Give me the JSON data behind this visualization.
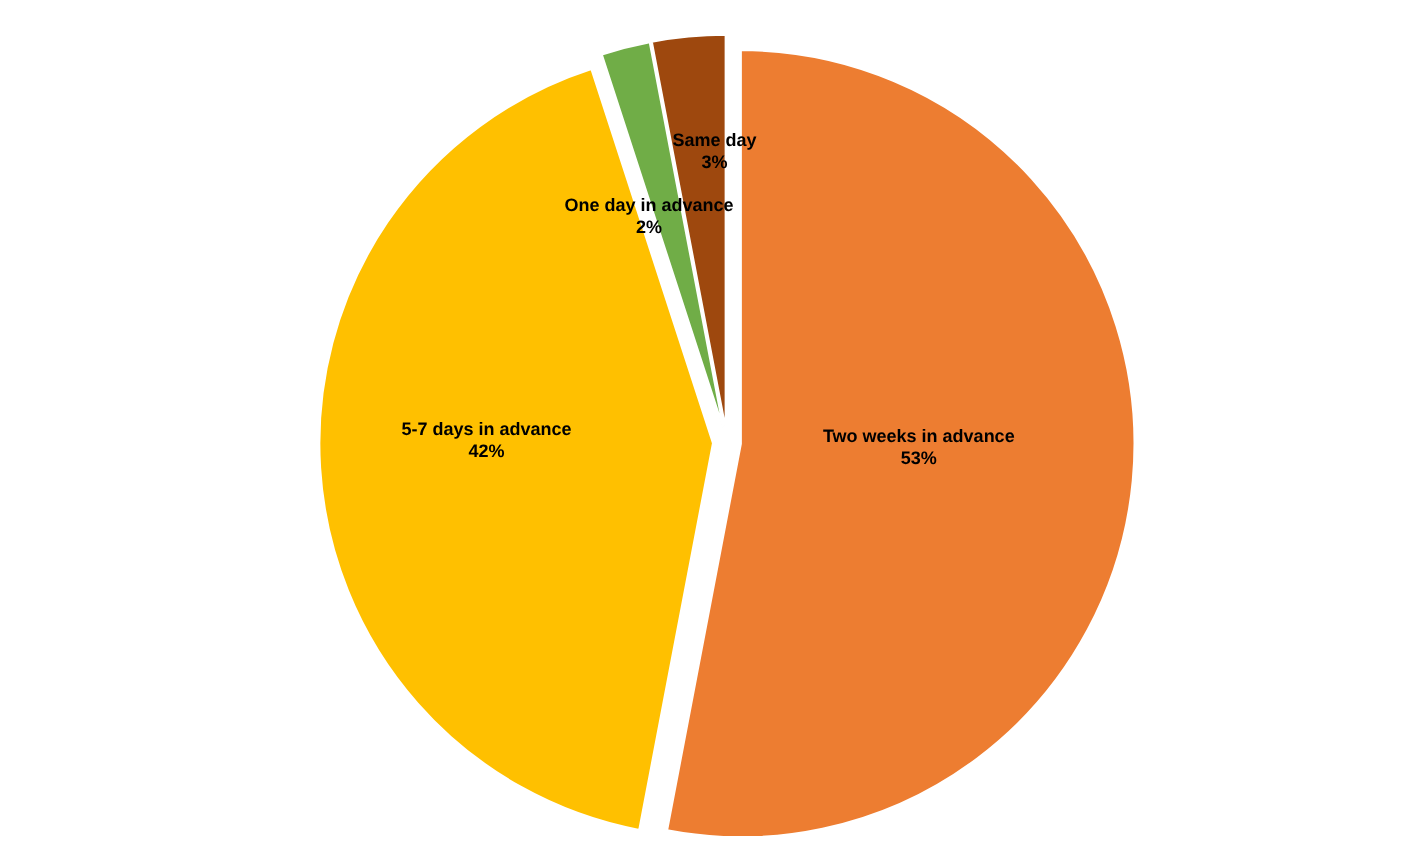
{
  "chart_data": {
    "type": "pie",
    "categories": [
      "Two weeks in advance",
      "5-7 days in advance",
      "One day in advance",
      "Same day"
    ],
    "values": [
      53,
      42,
      2,
      3
    ],
    "colors": [
      "#ed7d31",
      "#ffc000",
      "#70ad47",
      "#9e480e"
    ],
    "value_labels": [
      "53%",
      "42%",
      "2%",
      "3%"
    ],
    "legend": false
  }
}
